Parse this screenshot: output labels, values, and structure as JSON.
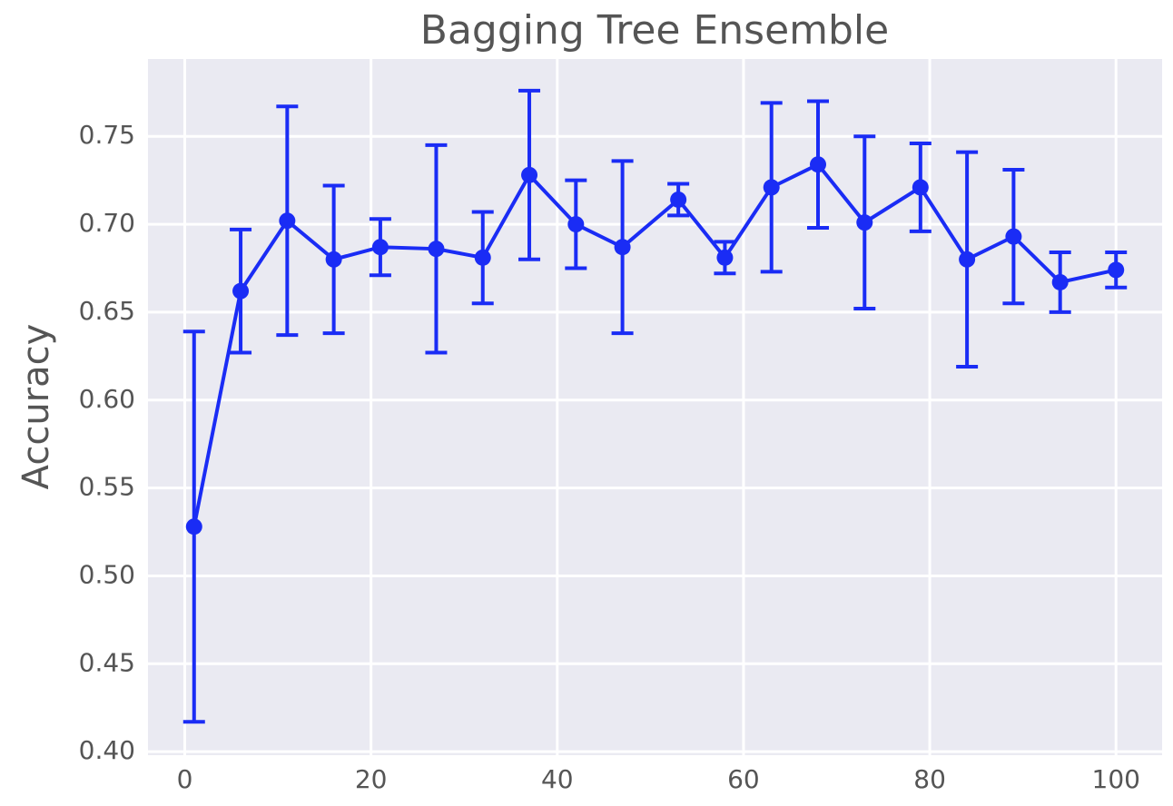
{
  "chart_data": {
    "type": "errorbar-line",
    "title": "Bagging Tree Ensemble",
    "y_label": "Accuracy",
    "x": [
      1,
      6,
      11,
      16,
      21,
      27,
      32,
      37,
      42,
      47,
      53,
      58,
      63,
      68,
      73,
      79,
      84,
      89,
      94,
      100
    ],
    "series": [
      {
        "name": "Accuracy",
        "color": "#1a2cf5",
        "values": [
          0.528,
          0.662,
          0.702,
          0.68,
          0.687,
          0.686,
          0.681,
          0.728,
          0.7,
          0.687,
          0.714,
          0.681,
          0.721,
          0.734,
          0.701,
          0.721,
          0.68,
          0.693,
          0.667,
          0.674
        ],
        "errors": [
          0.111,
          0.035,
          0.065,
          0.042,
          0.016,
          0.059,
          0.026,
          0.048,
          0.025,
          0.049,
          0.009,
          0.009,
          0.048,
          0.036,
          0.049,
          0.025,
          0.061,
          0.038,
          0.017,
          0.01
        ]
      }
    ],
    "xlim": [
      -3.95,
      104.95
    ],
    "xticks": [
      0,
      20,
      40,
      60,
      80,
      100
    ],
    "ylim": [
      0.398,
      0.794
    ],
    "yticks": [
      {
        "value": 0.4,
        "label": "0.40"
      },
      {
        "value": 0.45,
        "label": "0.45"
      },
      {
        "value": 0.5,
        "label": "0.50"
      },
      {
        "value": 0.55,
        "label": "0.55"
      },
      {
        "value": 0.6,
        "label": "0.60"
      },
      {
        "value": 0.65,
        "label": "0.65"
      },
      {
        "value": 0.7,
        "label": "0.70"
      },
      {
        "value": 0.75,
        "label": "0.75"
      }
    ],
    "grid": true
  }
}
